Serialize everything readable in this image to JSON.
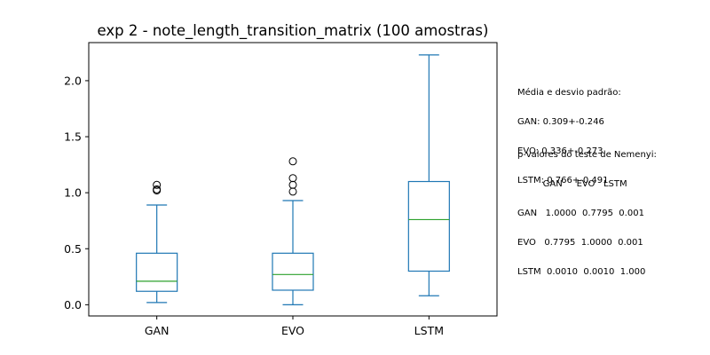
{
  "chart_data": {
    "type": "box",
    "title": "exp 2 - note_length_transition_matrix (100 amostras)",
    "xlabel": "",
    "ylabel": "",
    "categories": [
      "GAN",
      "EVO",
      "LSTM"
    ],
    "ylim": [
      -0.1,
      2.34
    ],
    "yticks": [
      0.0,
      0.5,
      1.0,
      1.5,
      2.0
    ],
    "ytick_labels": [
      "0.0",
      "0.5",
      "1.0",
      "1.5",
      "2.0"
    ],
    "grid": false,
    "colors": {
      "box": "#1f77b4",
      "median": "#2ca02c",
      "outlier": "#000000"
    },
    "series": [
      {
        "name": "GAN",
        "whisker_low": 0.02,
        "q1": 0.12,
        "median": 0.21,
        "q3": 0.46,
        "whisker_high": 0.89,
        "outliers": [
          1.02,
          1.03,
          1.07
        ]
      },
      {
        "name": "EVO",
        "whisker_low": 0.0,
        "q1": 0.13,
        "median": 0.27,
        "q3": 0.46,
        "whisker_high": 0.93,
        "outliers": [
          1.01,
          1.07,
          1.13,
          1.28
        ]
      },
      {
        "name": "LSTM",
        "whisker_low": 0.08,
        "q1": 0.3,
        "median": 0.76,
        "q3": 1.1,
        "whisker_high": 2.23,
        "outliers": []
      }
    ]
  },
  "annotations": {
    "stats_lines": [
      "Média e desvio padrão:",
      "GAN: 0.309+-0.246",
      "EVO: 0.336+-0.273",
      "LSTM: 0.766+-0.491"
    ],
    "nemenyi_lines": [
      "p-valores do teste de Nemenyi:",
      "         GAN     EVO   LSTM",
      "GAN   1.0000  0.7795  0.001",
      "EVO   0.7795  1.0000  0.001",
      "LSTM  0.0010  0.0010  1.000"
    ]
  }
}
